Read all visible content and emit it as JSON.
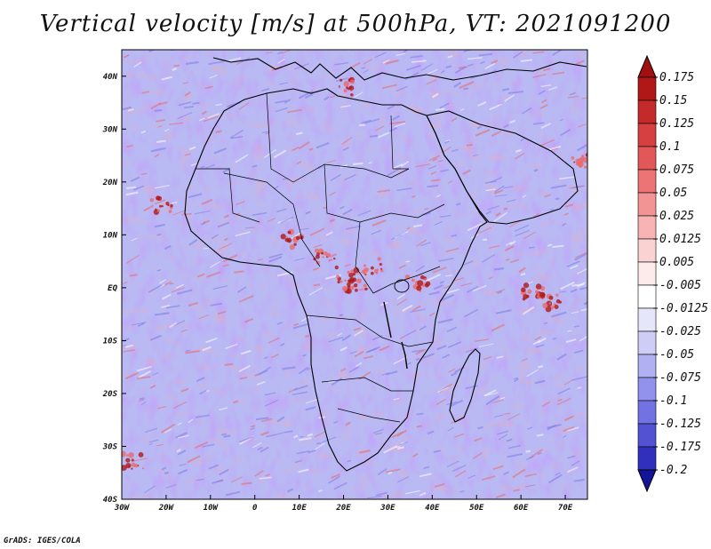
{
  "title": "Vertical velocity [m/s] at 500hPa, VT: 2021091200",
  "credit": "GrADS: IGES/COLA",
  "map": {
    "lon_range": [
      -30,
      75
    ],
    "lat_range": [
      -40,
      45
    ],
    "lon_ticks": [
      {
        "value": -30,
        "label": "30W"
      },
      {
        "value": -20,
        "label": "20W"
      },
      {
        "value": -10,
        "label": "10W"
      },
      {
        "value": 0,
        "label": "0"
      },
      {
        "value": 10,
        "label": "10E"
      },
      {
        "value": 20,
        "label": "20E"
      },
      {
        "value": 30,
        "label": "30E"
      },
      {
        "value": 40,
        "label": "40E"
      },
      {
        "value": 50,
        "label": "50E"
      },
      {
        "value": 60,
        "label": "60E"
      },
      {
        "value": 70,
        "label": "70E"
      }
    ],
    "lat_ticks": [
      {
        "value": 40,
        "label": "40N"
      },
      {
        "value": 30,
        "label": "30N"
      },
      {
        "value": 20,
        "label": "20N"
      },
      {
        "value": 10,
        "label": "10N"
      },
      {
        "value": 0,
        "label": "EQ"
      },
      {
        "value": -10,
        "label": "10S"
      },
      {
        "value": -20,
        "label": "20S"
      },
      {
        "value": -30,
        "label": "30S"
      },
      {
        "value": -40,
        "label": "40S"
      }
    ]
  },
  "colorbar": {
    "levels": [
      {
        "label": "0.175",
        "color": "#b01818"
      },
      {
        "label": "0.15",
        "color": "#c42a2a"
      },
      {
        "label": "0.125",
        "color": "#d64040"
      },
      {
        "label": "0.1",
        "color": "#e25858"
      },
      {
        "label": "0.075",
        "color": "#ec7474"
      },
      {
        "label": "0.05",
        "color": "#f39494"
      },
      {
        "label": "0.025",
        "color": "#f8b4b4"
      },
      {
        "label": "0.0125",
        "color": "#fbd2d2"
      },
      {
        "label": "0.005",
        "color": "#fdeaea"
      },
      {
        "label": "-0.005",
        "color": "#ffffff"
      },
      {
        "label": "-0.0125",
        "color": "#e6e6fa"
      },
      {
        "label": "-0.025",
        "color": "#cdcdf7"
      },
      {
        "label": "-0.05",
        "color": "#b0b0f2"
      },
      {
        "label": "-0.075",
        "color": "#9292ec"
      },
      {
        "label": "-0.1",
        "color": "#7272e2"
      },
      {
        "label": "-0.125",
        "color": "#5252d2"
      },
      {
        "label": "-0.175",
        "color": "#3030bc"
      },
      {
        "label": "-0.2",
        "color": "#1c1ca8"
      }
    ],
    "over_color": "#a01010",
    "under_color": "#14149a"
  },
  "field_colors": {
    "ocean_base": "#b9b9f4",
    "land_base": "#d8d8f8",
    "updraft": "#e86a6a",
    "strong_updraft": "#b01818",
    "downdraft": "#7c7ce6",
    "boundary": "#000000"
  }
}
